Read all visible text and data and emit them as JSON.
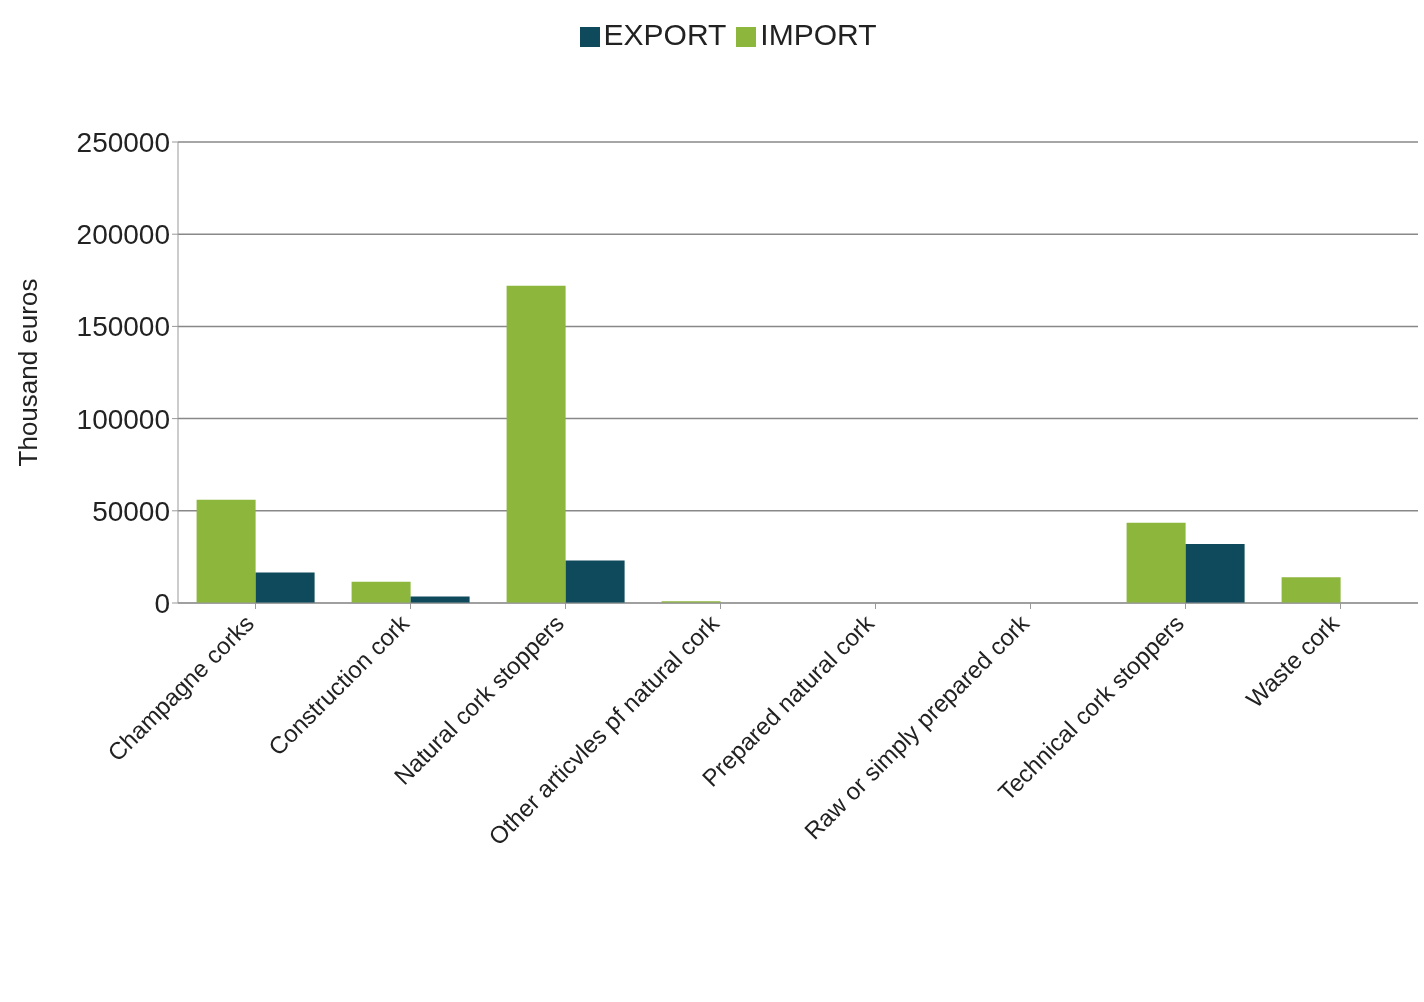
{
  "chart_data": {
    "type": "bar",
    "ylabel": "Thousand  euros",
    "categories": [
      "Champagne corks",
      "Construction cork",
      "Natural cork stoppers",
      "Other articvles pf natural cork",
      "Prepared natural cork",
      "Raw or simply prepared cork",
      "Technical cork stoppers",
      "Waste cork"
    ],
    "series": [
      {
        "name": "IMPORT",
        "color": "#8cb63c",
        "values": [
          56000,
          11500,
          172000,
          1000,
          0,
          0,
          43500,
          14000
        ]
      },
      {
        "name": "EXPORT",
        "color": "#0e4a5c",
        "values": [
          16500,
          3500,
          23000,
          0,
          0,
          0,
          32000,
          0
        ]
      }
    ],
    "ylim": [
      0,
      250000
    ],
    "yticks": [
      0,
      50000,
      100000,
      150000,
      200000,
      250000
    ],
    "grid": "y",
    "legend": "top"
  }
}
